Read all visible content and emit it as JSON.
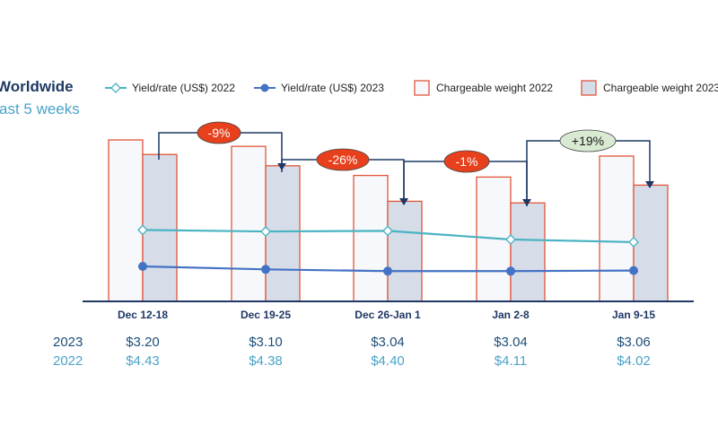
{
  "chart_data": {
    "type": "bar",
    "title": "Worldwide",
    "subtitle": "ast 5 weeks",
    "categories": [
      "Dec 12-18",
      "Dec 19-25",
      "Dec 26-Jan 1",
      "Jan 2-8",
      "Jan 9-15"
    ],
    "series": [
      {
        "name": "Yield/rate (US$) 2022",
        "kind": "line",
        "marker": "diamond-open",
        "color": "#4ab3c2",
        "values": [
          4.43,
          4.38,
          4.4,
          4.11,
          4.02
        ]
      },
      {
        "name": "Yield/rate (US$) 2023",
        "kind": "line",
        "marker": "circle-filled",
        "color": "#4472c4",
        "values": [
          3.2,
          3.1,
          3.04,
          3.04,
          3.06
        ]
      },
      {
        "name": "Chargeable weight 2022",
        "kind": "bar",
        "fill": "#f7f8fb",
        "stroke": "#e2553a",
        "values": [
          100,
          96,
          78,
          77,
          90
        ]
      },
      {
        "name": "Chargeable weight 2023",
        "kind": "bar",
        "fill": "#d6dde9",
        "stroke": "#e2553a",
        "values": [
          91,
          84,
          62,
          61,
          72
        ]
      }
    ],
    "value_rows": [
      {
        "label": "2023",
        "values": [
          "$3.20",
          "$3.10",
          "$3.04",
          "$3.04",
          "$3.06"
        ]
      },
      {
        "label": "2022",
        "values": [
          "$4.43",
          "$4.38",
          "$4.40",
          "$4.11",
          "$4.02"
        ]
      }
    ],
    "annotations": [
      {
        "text": "-9%",
        "from": 0,
        "to": 1,
        "style": "negative"
      },
      {
        "text": "-26%",
        "from": 1,
        "to": 2,
        "style": "negative"
      },
      {
        "text": "-1%",
        "from": 2,
        "to": 3,
        "style": "negative"
      },
      {
        "text": "+19%",
        "from": 3,
        "to": 4,
        "style": "positive"
      }
    ],
    "legend_position": "top",
    "grid": false,
    "colors": {
      "negative_badge": "#e8401c",
      "positive_badge": "#d9ead3",
      "connector": "#1f3864",
      "axis": "#1f3864"
    }
  }
}
